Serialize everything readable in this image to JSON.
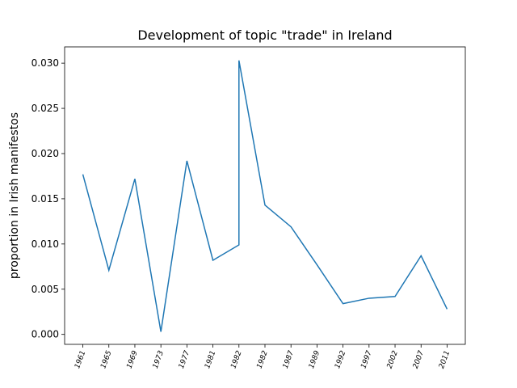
{
  "chart_data": {
    "type": "line",
    "title": "Development of topic \"trade\" in Ireland",
    "ylabel": "proportion in Irish manifestos",
    "x": [
      0,
      1,
      2,
      3,
      4,
      5,
      6,
      6,
      7,
      8,
      9,
      10,
      11,
      12,
      13,
      14
    ],
    "series": [
      {
        "name": "trade",
        "color": "#1f77b4",
        "values": [
          0.0177,
          0.0071,
          0.0172,
          0.0003,
          0.0192,
          0.0082,
          0.0099,
          0.0303,
          0.0143,
          0.0119,
          0.0077,
          0.0034,
          0.004,
          0.0042,
          0.0087,
          0.0028
        ]
      }
    ],
    "xlim": [
      -0.7,
      14.7
    ],
    "xticks": [
      {
        "value": 0,
        "label": "1961"
      },
      {
        "value": 1,
        "label": "1965"
      },
      {
        "value": 2,
        "label": "1969"
      },
      {
        "value": 3,
        "label": "1973"
      },
      {
        "value": 4,
        "label": "1977"
      },
      {
        "value": 5,
        "label": "1981"
      },
      {
        "value": 6,
        "label": "1982"
      },
      {
        "value": 7,
        "label": "1982"
      },
      {
        "value": 8,
        "label": "1987"
      },
      {
        "value": 9,
        "label": "1989"
      },
      {
        "value": 10,
        "label": "1992"
      },
      {
        "value": 11,
        "label": "1997"
      },
      {
        "value": 12,
        "label": "2002"
      },
      {
        "value": 13,
        "label": "2007"
      },
      {
        "value": 14,
        "label": "2011"
      }
    ],
    "ylim": [
      -0.0011,
      0.0318
    ],
    "yticks": [
      {
        "value": 0,
        "label": "0.000"
      },
      {
        "value": 0.005,
        "label": "0.005"
      },
      {
        "value": 0.01,
        "label": "0.010"
      },
      {
        "value": 0.015,
        "label": "0.015"
      },
      {
        "value": 0.02,
        "label": "0.020"
      },
      {
        "value": 0.025,
        "label": "0.025"
      },
      {
        "value": 0.03,
        "label": "0.030"
      }
    ]
  }
}
